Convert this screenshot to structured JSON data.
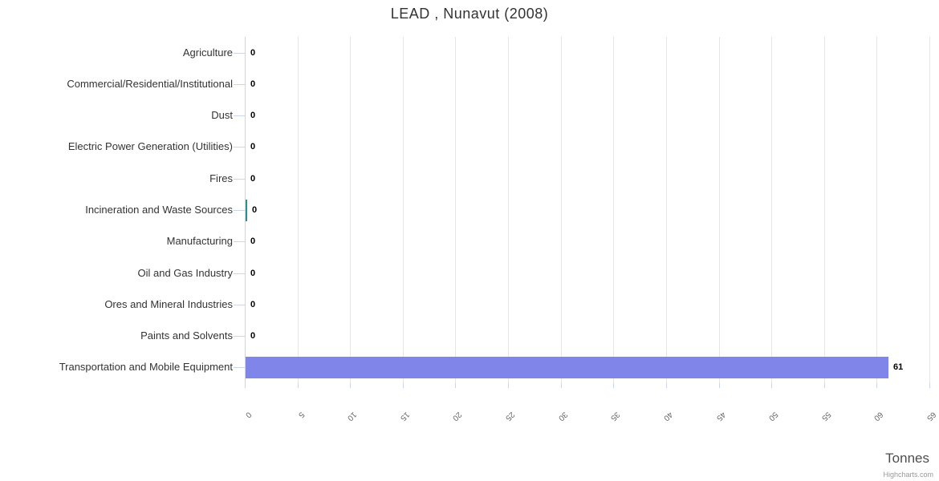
{
  "chart_data": {
    "type": "bar",
    "orientation": "horizontal",
    "title": "LEAD , Nunavut (2008)",
    "categories": [
      "Agriculture",
      "Commercial/Residential/Institutional",
      "Dust",
      "Electric Power Generation (Utilities)",
      "Fires",
      "Incineration and Waste Sources",
      "Manufacturing",
      "Oil and Gas Industry",
      "Ores and Mineral Industries",
      "Paints and Solvents",
      "Transportation and Mobile Equipment"
    ],
    "values": [
      0,
      0,
      0,
      0,
      0,
      0.1,
      0,
      0,
      0,
      0,
      61
    ],
    "data_labels": [
      "0",
      "0",
      "0",
      "0",
      "0",
      "0",
      "0",
      "0",
      "0",
      "0",
      "61"
    ],
    "point_colors": [
      null,
      null,
      null,
      null,
      null,
      "#2b908f",
      null,
      null,
      null,
      null,
      "#8085e9"
    ],
    "default_bar_color": "#8085e9",
    "value_axis": {
      "title": "Tonnes",
      "min": 0,
      "max": 65,
      "tick_interval": 5,
      "tick_labels": [
        "0",
        "5",
        "10",
        "15",
        "20",
        "25",
        "30",
        "35",
        "40",
        "45",
        "50",
        "55",
        "60",
        "65"
      ],
      "label_rotation_deg": 135
    },
    "grid": true,
    "legend": false,
    "credits": "Highcharts.com",
    "colors": {
      "background": "#ffffff",
      "grid": "#e6e6e6",
      "axis_line": "#ccd6eb",
      "tick": "#ccd6eb",
      "title_text": "#333333",
      "category_text": "#333333",
      "value_label_text": "#666666",
      "data_label_text": "#000000",
      "axis_title_text": "#4d4d4d",
      "credits_text": "#999999"
    }
  }
}
